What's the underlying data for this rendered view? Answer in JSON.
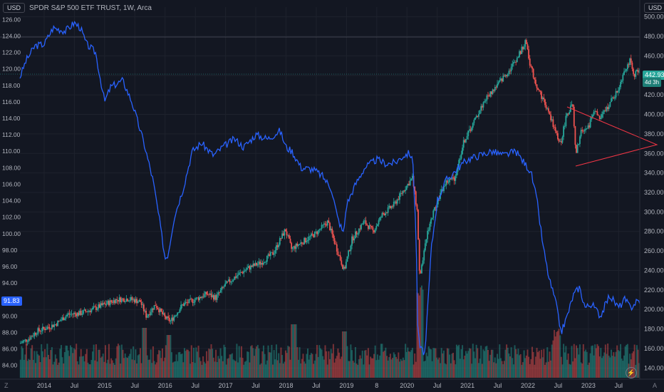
{
  "header": {
    "currency_left": "USD",
    "symbol": "SPDR S&P 500 ETF TRUST, 1W, Arca",
    "currency_right": "USD"
  },
  "price_labels": {
    "last_price": "442.93",
    "countdown": "4d 3h",
    "left_value": "91.83"
  },
  "colors": {
    "background": "#131722",
    "up": "#26a69a",
    "down": "#ef5350",
    "overlay_line": "#2962ff",
    "triangle": "#f23645",
    "grid": "#1e222d"
  },
  "icons": {
    "bolt": "lightning-icon",
    "corner_left": "Z",
    "corner_right": "A"
  },
  "chart_data": {
    "type": "line",
    "x_ticks": [
      "2014",
      "Jul",
      "2015",
      "Jul",
      "2016",
      "Jul",
      "2017",
      "Jul",
      "2018",
      "Jul",
      "2019",
      "8",
      "2020",
      "Jul",
      "2021",
      "Jul",
      "2022",
      "Jul",
      "2023",
      "Jul"
    ],
    "y_right_ticks": [
      "500.00",
      "480.00",
      "460.00",
      "440.00",
      "420.00",
      "400.00",
      "380.00",
      "360.00",
      "340.00",
      "320.00",
      "300.00",
      "280.00",
      "260.00",
      "240.00",
      "220.00",
      "200.00",
      "180.00",
      "160.00",
      "140.00"
    ],
    "y_left_ticks": [
      "126.00",
      "124.00",
      "122.00",
      "120.00",
      "118.00",
      "116.00",
      "114.00",
      "112.00",
      "110.00",
      "108.00",
      "106.00",
      "104.00",
      "102.00",
      "100.00",
      "98.00",
      "96.00",
      "94.00",
      "92.00",
      "90.00",
      "88.00",
      "86.00",
      "84.00"
    ],
    "y_right_range": [
      130,
      510
    ],
    "y_left_range": [
      82.5,
      127.5
    ],
    "x_range": [
      2013.6,
      2023.85
    ],
    "grid": true,
    "series": [
      {
        "chart": "candlestick",
        "axis": "right",
        "points": [
          [
            2013.6,
            165
          ],
          [
            2013.75,
            170
          ],
          [
            2013.9,
            178
          ],
          [
            2014.0,
            180
          ],
          [
            2014.2,
            185
          ],
          [
            2014.4,
            195
          ],
          [
            2014.6,
            196
          ],
          [
            2014.8,
            200
          ],
          [
            2015.0,
            205
          ],
          [
            2015.2,
            210
          ],
          [
            2015.4,
            211
          ],
          [
            2015.6,
            208
          ],
          [
            2015.7,
            193
          ],
          [
            2015.85,
            205
          ],
          [
            2016.0,
            192
          ],
          [
            2016.1,
            188
          ],
          [
            2016.3,
            205
          ],
          [
            2016.5,
            210
          ],
          [
            2016.7,
            216
          ],
          [
            2016.85,
            212
          ],
          [
            2017.0,
            225
          ],
          [
            2017.2,
            235
          ],
          [
            2017.4,
            243
          ],
          [
            2017.6,
            248
          ],
          [
            2017.8,
            258
          ],
          [
            2018.0,
            282
          ],
          [
            2018.1,
            262
          ],
          [
            2018.3,
            270
          ],
          [
            2018.5,
            278
          ],
          [
            2018.7,
            290
          ],
          [
            2018.85,
            262
          ],
          [
            2018.97,
            240
          ],
          [
            2019.1,
            272
          ],
          [
            2019.3,
            290
          ],
          [
            2019.45,
            280
          ],
          [
            2019.6,
            297
          ],
          [
            2019.8,
            308
          ],
          [
            2019.95,
            322
          ],
          [
            2020.1,
            335
          ],
          [
            2020.18,
            300
          ],
          [
            2020.22,
            230
          ],
          [
            2020.35,
            280
          ],
          [
            2020.5,
            310
          ],
          [
            2020.65,
            330
          ],
          [
            2020.8,
            335
          ],
          [
            2020.95,
            372
          ],
          [
            2021.1,
            390
          ],
          [
            2021.3,
            415
          ],
          [
            2021.5,
            430
          ],
          [
            2021.7,
            445
          ],
          [
            2021.85,
            460
          ],
          [
            2021.98,
            475
          ],
          [
            2022.05,
            450
          ],
          [
            2022.15,
            430
          ],
          [
            2022.3,
            410
          ],
          [
            2022.45,
            385
          ],
          [
            2022.5,
            375
          ],
          [
            2022.55,
            370
          ],
          [
            2022.65,
            400
          ],
          [
            2022.75,
            410
          ],
          [
            2022.8,
            358
          ],
          [
            2022.9,
            385
          ],
          [
            2023.0,
            385
          ],
          [
            2023.1,
            405
          ],
          [
            2023.2,
            395
          ],
          [
            2023.35,
            410
          ],
          [
            2023.5,
            425
          ],
          [
            2023.6,
            445
          ],
          [
            2023.7,
            455
          ],
          [
            2023.75,
            440
          ],
          [
            2023.8,
            443
          ]
        ]
      },
      {
        "chart": "line",
        "axis": "left",
        "points": [
          [
            2013.6,
            119.0
          ],
          [
            2013.7,
            121.0
          ],
          [
            2013.85,
            122.8
          ],
          [
            2014.0,
            123.0
          ],
          [
            2014.15,
            125.0
          ],
          [
            2014.35,
            124.6
          ],
          [
            2014.5,
            125.6
          ],
          [
            2014.6,
            125.0
          ],
          [
            2014.7,
            123.0
          ],
          [
            2014.85,
            122.0
          ],
          [
            2015.0,
            116.0
          ],
          [
            2015.1,
            117.8
          ],
          [
            2015.3,
            118.6
          ],
          [
            2015.45,
            116.0
          ],
          [
            2015.65,
            111.0
          ],
          [
            2015.8,
            106.5
          ],
          [
            2015.9,
            102.0
          ],
          [
            2016.0,
            97.0
          ],
          [
            2016.05,
            97.5
          ],
          [
            2016.15,
            102.0
          ],
          [
            2016.3,
            105.5
          ],
          [
            2016.45,
            110.0
          ],
          [
            2016.6,
            111.0
          ],
          [
            2016.8,
            109.5
          ],
          [
            2016.95,
            110.5
          ],
          [
            2017.15,
            111.5
          ],
          [
            2017.3,
            110.5
          ],
          [
            2017.5,
            112.0
          ],
          [
            2017.7,
            111.5
          ],
          [
            2017.9,
            112.5
          ],
          [
            2018.0,
            110.5
          ],
          [
            2018.1,
            110.0
          ],
          [
            2018.25,
            108.0
          ],
          [
            2018.45,
            107.8
          ],
          [
            2018.6,
            107.0
          ],
          [
            2018.75,
            105.5
          ],
          [
            2018.85,
            102.0
          ],
          [
            2018.95,
            100.0
          ],
          [
            2019.0,
            103.5
          ],
          [
            2019.15,
            106.0
          ],
          [
            2019.3,
            108.0
          ],
          [
            2019.5,
            109.0
          ],
          [
            2019.65,
            108.5
          ],
          [
            2019.8,
            108.6
          ],
          [
            2019.95,
            109.5
          ],
          [
            2020.05,
            109.8
          ],
          [
            2020.1,
            108.5
          ],
          [
            2020.15,
            100.0
          ],
          [
            2020.18,
            88.0
          ],
          [
            2020.22,
            86.0
          ],
          [
            2020.3,
            85.5
          ],
          [
            2020.4,
            98.0
          ],
          [
            2020.5,
            104.0
          ],
          [
            2020.65,
            106.5
          ],
          [
            2020.85,
            108.0
          ],
          [
            2021.0,
            109.0
          ],
          [
            2021.2,
            109.5
          ],
          [
            2021.4,
            110.0
          ],
          [
            2021.6,
            109.5
          ],
          [
            2021.8,
            110.0
          ],
          [
            2021.95,
            108.5
          ],
          [
            2022.05,
            107.5
          ],
          [
            2022.15,
            104.0
          ],
          [
            2022.25,
            98.5
          ],
          [
            2022.35,
            94.5
          ],
          [
            2022.45,
            92.0
          ],
          [
            2022.55,
            88.0
          ],
          [
            2022.65,
            90.0
          ],
          [
            2022.75,
            92.5
          ],
          [
            2022.85,
            93.5
          ],
          [
            2022.95,
            91.0
          ],
          [
            2023.05,
            91.5
          ],
          [
            2023.2,
            90.0
          ],
          [
            2023.35,
            92.5
          ],
          [
            2023.5,
            91.0
          ],
          [
            2023.6,
            92.0
          ],
          [
            2023.7,
            91.0
          ],
          [
            2023.8,
            91.8
          ]
        ]
      }
    ]
  }
}
